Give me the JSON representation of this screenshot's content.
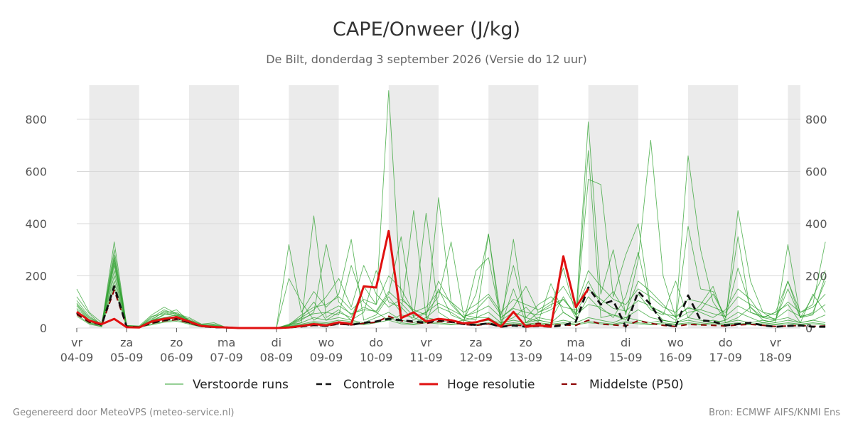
{
  "title": "CAPE/Onweer (J/kg)",
  "subtitle": "De Bilt, donderdag  3 september 2026 (Versie do 12 uur)",
  "footer_left": "Gegenereerd door MeteoVPS (meteo-service.nl)",
  "footer_right": "Bron: ECMWF AIFS/KNMI Ens",
  "colors": {
    "ensemble": "#2ca02c",
    "control": "#111111",
    "hires": "#e01010",
    "median": "#8b0000",
    "weekend_band": "#ebebeb",
    "grid": "#d9d9d9"
  },
  "chart_data": {
    "type": "line",
    "ylim": [
      0,
      930
    ],
    "yticks": [
      0,
      200,
      400,
      600,
      800
    ],
    "x_day_range": [
      0,
      14.5
    ],
    "grid": true,
    "legend_position": "bottom",
    "shaded_days": [
      [
        0.25,
        1.25
      ],
      [
        2.25,
        3.25
      ],
      [
        4.25,
        5.25
      ],
      [
        6.25,
        7.25
      ],
      [
        8.25,
        9.25
      ],
      [
        10.25,
        11.25
      ],
      [
        12.25,
        13.25
      ],
      [
        14.25,
        15.25
      ]
    ],
    "xtick_days": [
      0,
      1,
      2,
      3,
      4,
      5,
      6,
      7,
      8,
      9,
      10,
      11,
      12,
      13,
      14
    ],
    "xtick_weekday": [
      "vr",
      "za",
      "zo",
      "ma",
      "di",
      "wo",
      "do",
      "vr",
      "za",
      "zo",
      "ma",
      "di",
      "wo",
      "do",
      "vr"
    ],
    "xtick_date": [
      "04-09",
      "05-09",
      "06-09",
      "07-09",
      "08-09",
      "09-09",
      "10-09",
      "11-09",
      "12-09",
      "13-09",
      "14-09",
      "15-09",
      "16-09",
      "17-09",
      "18-09"
    ],
    "x_step_days": 0.25,
    "legend": [
      "Verstoorde runs",
      "Controle",
      "Hoge resolutie",
      "Middelste (P50)"
    ],
    "series": [
      {
        "name": "Hoge resolutie",
        "values": [
          62,
          28,
          15,
          35,
          3,
          2,
          25,
          35,
          42,
          25,
          8,
          4,
          2,
          0,
          0,
          0,
          0,
          2,
          8,
          15,
          10,
          22,
          15,
          160,
          155,
          372,
          38,
          60,
          25,
          35,
          30,
          18,
          22,
          35,
          5,
          62,
          5,
          10,
          5,
          275,
          80,
          150
        ]
      },
      {
        "name": "Controle",
        "values": [
          58,
          25,
          12,
          160,
          5,
          3,
          20,
          30,
          38,
          22,
          7,
          3,
          2,
          0,
          0,
          0,
          0,
          2,
          6,
          12,
          8,
          18,
          12,
          20,
          25,
          35,
          30,
          25,
          20,
          30,
          25,
          15,
          12,
          18,
          5,
          10,
          5,
          8,
          5,
          10,
          25,
          155,
          90,
          105,
          5,
          140,
          90,
          15,
          5,
          125,
          30,
          25,
          10,
          15,
          20,
          10,
          5,
          8,
          10,
          5,
          5
        ]
      },
      {
        "name": "Middelste (P50)",
        "values": [
          52,
          22,
          12,
          145,
          5,
          3,
          18,
          28,
          32,
          20,
          6,
          3,
          2,
          0,
          0,
          0,
          0,
          2,
          5,
          10,
          8,
          15,
          12,
          18,
          22,
          45,
          28,
          22,
          18,
          25,
          22,
          14,
          10,
          16,
          6,
          12,
          8,
          18,
          10,
          12,
          10,
          30,
          15,
          12,
          8,
          28,
          18,
          10,
          6,
          14,
          12,
          10,
          8,
          12,
          14,
          10,
          6,
          8,
          10,
          6,
          8
        ]
      },
      {
        "name": "Verstoorde runs",
        "values": [
          105,
          45,
          12,
          330,
          8,
          5,
          30,
          65,
          55,
          30,
          15,
          20,
          2,
          0,
          0,
          0,
          0,
          15,
          40,
          100,
          30,
          60,
          40,
          160,
          90,
          910,
          120,
          60,
          30,
          500,
          100,
          40,
          30,
          360,
          10,
          340,
          20,
          40,
          30,
          120,
          40,
          790,
          130,
          300,
          50,
          260,
          720,
          200,
          40,
          660,
          300,
          100,
          30,
          450,
          180,
          60,
          30,
          150,
          40,
          120,
          220
        ]
      },
      {
        "name": "Verstoorde runs",
        "values": [
          75,
          30,
          8,
          260,
          5,
          4,
          45,
          55,
          70,
          25,
          10,
          8,
          2,
          0,
          0,
          0,
          0,
          8,
          30,
          60,
          320,
          100,
          50,
          80,
          60,
          130,
          350,
          40,
          440,
          60,
          30,
          20,
          220,
          270,
          30,
          60,
          40,
          25,
          170,
          60,
          30,
          570,
          550,
          120,
          280,
          400,
          80,
          30,
          20,
          390,
          150,
          140,
          40,
          230,
          80,
          40,
          60,
          180,
          60,
          90,
          330
        ]
      },
      {
        "name": "Verstoorde runs",
        "values": [
          90,
          35,
          15,
          280,
          10,
          6,
          20,
          40,
          50,
          35,
          12,
          15,
          3,
          0,
          0,
          0,
          0,
          12,
          20,
          430,
          40,
          70,
          30,
          60,
          220,
          100,
          80,
          30,
          60,
          120,
          330,
          50,
          40,
          40,
          10,
          150,
          20,
          60,
          90,
          110,
          50,
          680,
          40,
          50,
          30,
          130,
          70,
          50,
          180,
          40,
          90,
          160,
          20,
          40,
          80,
          30,
          20,
          320,
          40,
          60,
          180
        ]
      },
      {
        "name": "Verstoorde runs",
        "values": [
          120,
          55,
          10,
          240,
          6,
          5,
          35,
          60,
          45,
          25,
          8,
          6,
          2,
          0,
          0,
          0,
          0,
          320,
          60,
          140,
          80,
          130,
          340,
          30,
          50,
          120,
          60,
          450,
          40,
          80,
          60,
          30,
          130,
          360,
          40,
          80,
          160,
          60,
          80,
          230,
          50,
          90,
          80,
          40,
          120,
          290,
          80,
          60,
          30,
          60,
          70,
          130,
          40,
          350,
          60,
          40,
          60,
          90,
          20,
          130,
          60
        ]
      },
      {
        "name": "Verstoorde runs",
        "values": [
          85,
          30,
          12,
          300,
          8,
          6,
          25,
          50,
          60,
          30,
          10,
          10,
          2,
          0,
          0,
          0,
          0,
          10,
          40,
          70,
          120,
          190,
          80,
          240,
          130,
          80,
          110,
          70,
          50,
          180,
          90,
          40,
          70,
          120,
          50,
          240,
          40,
          90,
          120,
          80,
          70,
          180,
          90,
          140,
          60,
          180,
          140,
          90,
          40,
          80,
          60,
          40,
          70,
          150,
          110,
          40,
          30,
          180,
          40,
          50,
          200
        ]
      },
      {
        "name": "Verstoorde runs",
        "values": [
          60,
          25,
          8,
          220,
          5,
          4,
          30,
          40,
          35,
          20,
          6,
          5,
          2,
          0,
          0,
          0,
          0,
          190,
          100,
          30,
          60,
          50,
          240,
          100,
          60,
          30,
          50,
          40,
          20,
          150,
          50,
          30,
          40,
          60,
          20,
          40,
          80,
          30,
          20,
          60,
          30,
          120,
          70,
          50,
          40,
          70,
          40,
          30,
          20,
          40,
          30,
          20,
          30,
          60,
          40,
          20,
          30,
          40,
          20,
          30,
          50
        ]
      },
      {
        "name": "Verstoorde runs",
        "values": [
          70,
          20,
          10,
          200,
          5,
          5,
          40,
          70,
          50,
          30,
          8,
          7,
          2,
          0,
          0,
          0,
          0,
          6,
          20,
          40,
          30,
          40,
          30,
          20,
          40,
          60,
          30,
          20,
          40,
          30,
          20,
          30,
          20,
          30,
          20,
          30,
          20,
          30,
          20,
          30,
          20,
          40,
          30,
          20,
          40,
          30,
          20,
          30,
          20,
          30,
          20,
          30,
          20,
          30,
          20,
          30,
          20,
          30,
          20,
          30,
          20
        ]
      },
      {
        "name": "Verstoorde runs",
        "values": [
          50,
          18,
          6,
          180,
          4,
          3,
          15,
          25,
          30,
          18,
          5,
          4,
          1,
          0,
          0,
          0,
          0,
          5,
          15,
          25,
          20,
          30,
          25,
          15,
          25,
          40,
          20,
          15,
          25,
          20,
          15,
          20,
          15,
          20,
          15,
          20,
          15,
          20,
          15,
          20,
          15,
          25,
          20,
          15,
          25,
          20,
          15,
          20,
          15,
          20,
          15,
          20,
          15,
          20,
          15,
          20,
          15,
          20,
          15,
          20,
          15
        ]
      },
      {
        "name": "Verstoorde runs",
        "values": [
          45,
          15,
          5,
          160,
          3,
          3,
          12,
          22,
          26,
          15,
          4,
          3,
          1,
          0,
          0,
          0,
          0,
          4,
          12,
          20,
          16,
          24,
          20,
          12,
          20,
          30,
          16,
          12,
          20,
          16,
          12,
          16,
          12,
          16,
          12,
          16,
          12,
          16,
          12,
          16,
          12,
          20,
          16,
          12,
          20,
          16,
          12,
          16,
          12,
          16,
          12,
          16,
          12,
          16,
          12,
          16,
          12,
          16,
          12,
          16,
          12
        ]
      },
      {
        "name": "Verstoorde runs",
        "values": [
          150,
          60,
          20,
          250,
          10,
          8,
          50,
          80,
          55,
          40,
          15,
          12,
          3,
          0,
          0,
          0,
          0,
          12,
          50,
          80,
          90,
          120,
          70,
          110,
          90,
          200,
          150,
          60,
          80,
          140,
          100,
          60,
          90,
          130,
          60,
          110,
          90,
          70,
          100,
          160,
          80,
          220,
          160,
          110,
          90,
          150,
          120,
          80,
          60,
          110,
          100,
          80,
          60,
          120,
          90,
          60,
          50,
          100,
          60,
          80,
          130
        ]
      },
      {
        "name": "Verstoorde runs",
        "values": [
          95,
          40,
          14,
          270,
          7,
          5,
          28,
          52,
          48,
          28,
          9,
          8,
          2,
          0,
          0,
          0,
          0,
          9,
          35,
          55,
          60,
          85,
          55,
          70,
          65,
          140,
          95,
          45,
          60,
          95,
          70,
          45,
          60,
          85,
          40,
          75,
          60,
          50,
          70,
          110,
          55,
          150,
          110,
          75,
          65,
          105,
          85,
          55,
          45,
          75,
          70,
          55,
          45,
          85,
          60,
          45,
          35,
          70,
          45,
          55,
          90
        ]
      }
    ]
  }
}
